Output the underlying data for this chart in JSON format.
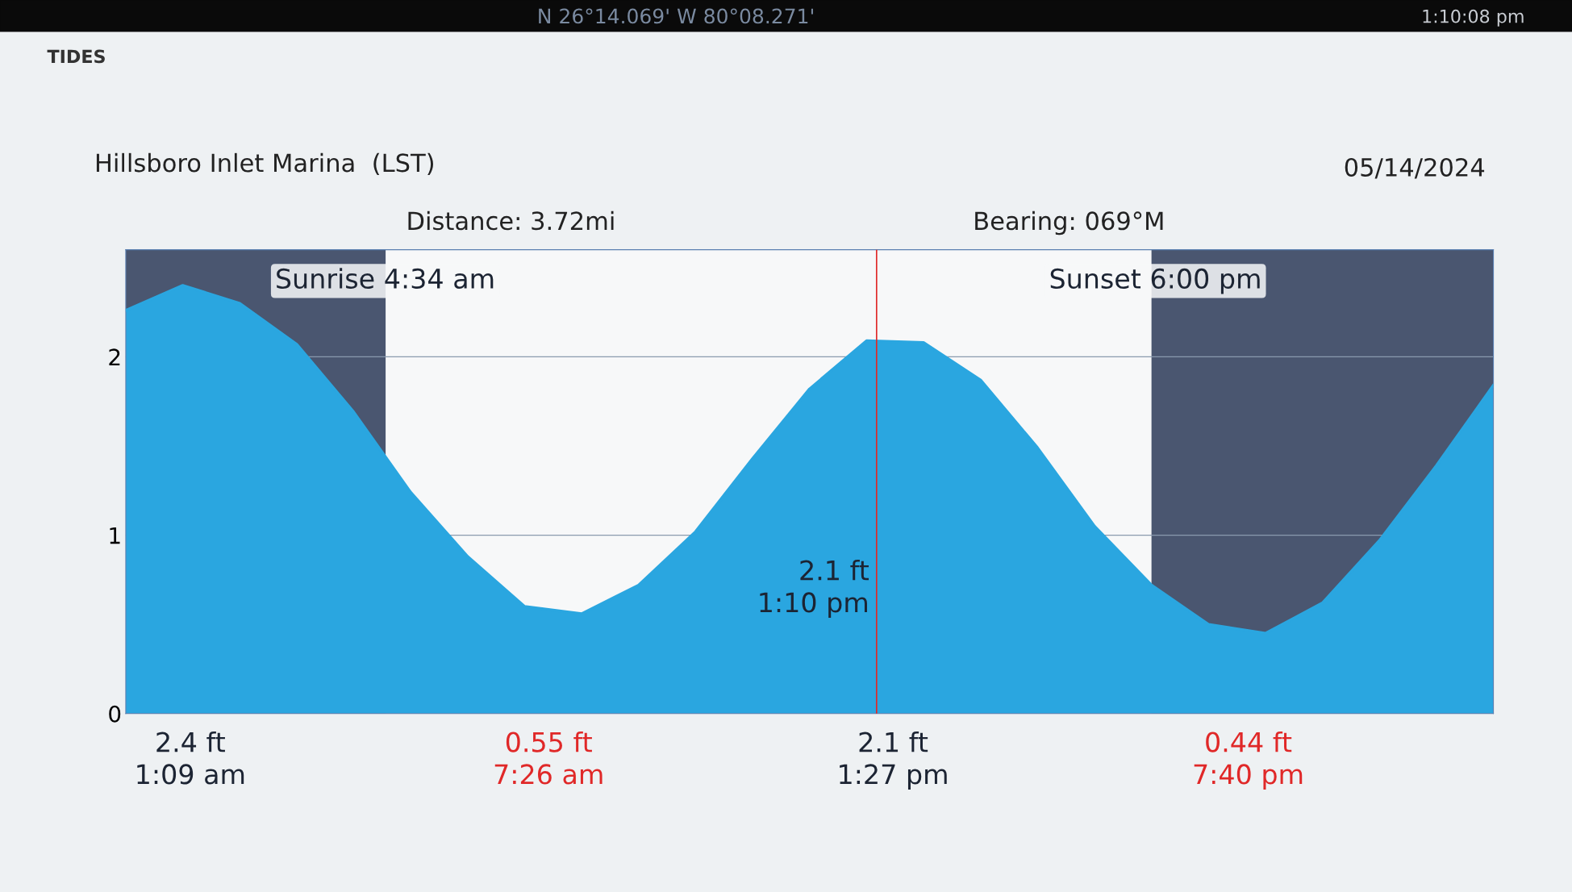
{
  "chart_data": {
    "type": "area",
    "title": "TIDES",
    "annotations": [
      "N 26°14.069' W 80°08.271'",
      "1:10:08 pm",
      "Hillsboro Inlet Marina  (LST)",
      "05/14/2024",
      "Distance: 3.72mi",
      "Bearing: 069°M",
      "2.4 ft\n1:09 am",
      "0.55 ft\n7:26 am",
      "2.1 ft\n1:27 pm",
      "0.44 ft\n7:40 pm",
      "Sunrise 4:34 am",
      "Sunset 6:00 pm",
      "2.1 ft\n1:10 pm"
    ],
    "categories": [
      null,
      null,
      null,
      null,
      null,
      null,
      null,
      null,
      null,
      null,
      null,
      null,
      null,
      null,
      null,
      null,
      null,
      null,
      null,
      null,
      null,
      null,
      null,
      null,
      null
    ],
    "series": [
      {
        "color": "#2aa6e0",
        "values": [
          2.26,
          2.4,
          2.3,
          2.07,
          1.69,
          1.24,
          0.88,
          0.6,
          0.56,
          0.72,
          1.02,
          1.43,
          1.82,
          2.09,
          2.08,
          1.87,
          1.49,
          1.05,
          0.72,
          0.5,
          0.45,
          0.62,
          0.97,
          1.39,
          1.84
        ]
      }
    ],
    "ylim": [
      0,
      2.6
    ],
    "yticks": [
      0,
      1,
      2
    ],
    "tick_labels": "y",
    "grid": true,
    "legend": false
  }
}
